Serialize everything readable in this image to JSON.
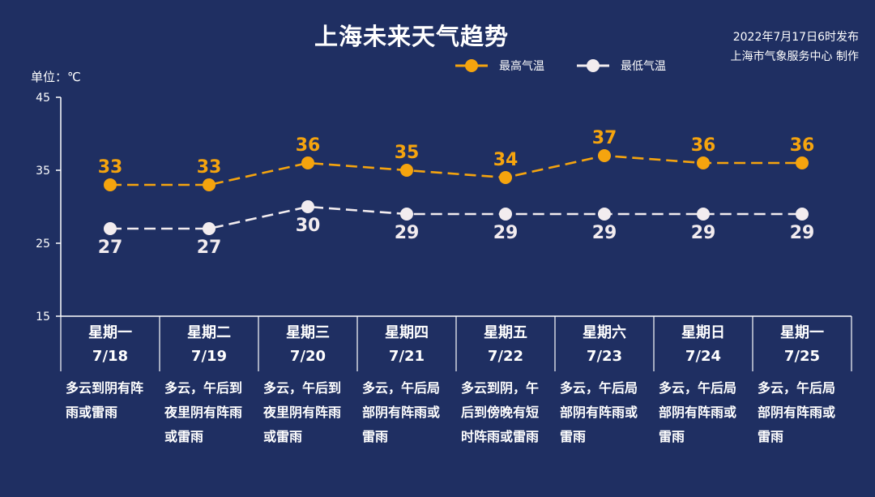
{
  "header": {
    "title": "上海未来天气趋势",
    "publish_line1": "2022年7月17日6时发布",
    "publish_line2": "上海市气象服务中心 制作"
  },
  "chart_data": {
    "type": "line",
    "unit_label": "单位：℃",
    "ylim": [
      15,
      45
    ],
    "yticks": [
      15,
      25,
      35,
      45
    ],
    "categories": [
      "7/18",
      "7/19",
      "7/20",
      "7/21",
      "7/22",
      "7/23",
      "7/24",
      "7/25"
    ],
    "weekdays": [
      "星期一",
      "星期二",
      "星期三",
      "星期四",
      "星期五",
      "星期六",
      "星期日",
      "星期一"
    ],
    "descriptions": [
      "多云到阴有阵雨或雷雨",
      "多云，午后到夜里阴有阵雨或雷雨",
      "多云，午后到夜里阴有阵雨或雷雨",
      "多云，午后局部阴有阵雨或雷雨",
      "多云到阴，午后到傍晚有短时阵雨或雷雨",
      "多云，午后局部阴有阵雨或雷雨",
      "多云，午后局部阴有阵雨或雷雨",
      "多云，午后局部阴有阵雨或雷雨"
    ],
    "series": [
      {
        "name": "最高气温",
        "values": [
          33,
          33,
          36,
          35,
          34,
          37,
          36,
          36
        ],
        "color": "#f5a40e"
      },
      {
        "name": "最低气温",
        "values": [
          27,
          27,
          30,
          29,
          29,
          29,
          29,
          29
        ],
        "color": "#f2ecef"
      }
    ]
  }
}
